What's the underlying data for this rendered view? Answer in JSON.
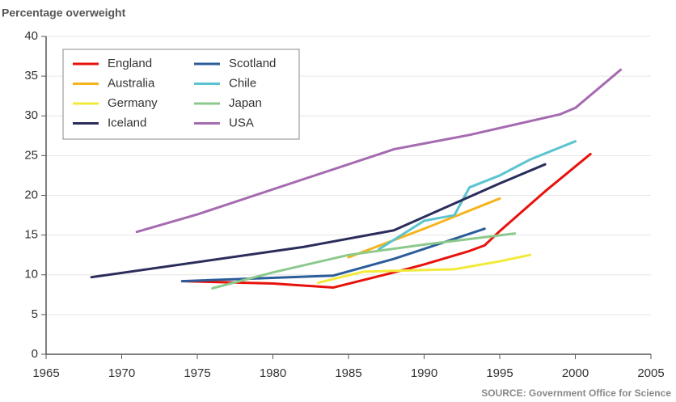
{
  "chart_data": {
    "type": "line",
    "title": "Percentage overweight",
    "annotation": "SOURCE: Government Office for Science",
    "xlim": [
      1965,
      2005
    ],
    "xticks": [
      1965,
      1970,
      1975,
      1980,
      1985,
      1990,
      1995,
      2000,
      2005
    ],
    "ylim": [
      0,
      40
    ],
    "yticks": [
      0,
      5,
      10,
      15,
      20,
      25,
      30,
      35,
      40
    ],
    "grid": true,
    "legend": "upper left",
    "series": [
      {
        "name": "England",
        "color": "#e8120c",
        "x": [
          1974,
          1980,
          1984,
          1988,
          1990,
          1993,
          1994,
          1995,
          1998,
          2001
        ],
        "values": [
          9.2,
          8.9,
          8.4,
          10.3,
          11.3,
          13,
          13.7,
          15.5,
          20.5,
          25.2
        ]
      },
      {
        "name": "Scotland",
        "color": "#2b5d9b",
        "x": [
          1974,
          1984,
          1988,
          1994
        ],
        "values": [
          9.2,
          9.9,
          12,
          15.8
        ]
      },
      {
        "name": "Australia",
        "color": "#f5b41c",
        "x": [
          1985,
          1990,
          1995
        ],
        "values": [
          12.2,
          15.8,
          19.6
        ]
      },
      {
        "name": "Chile",
        "color": "#5bc4d0",
        "x": [
          1987,
          1990,
          1992,
          1993,
          1995,
          1997,
          2000
        ],
        "values": [
          13.2,
          16.8,
          17.5,
          21,
          22.5,
          24.5,
          26.8
        ]
      },
      {
        "name": "Germany",
        "color": "#f2ea38",
        "x": [
          1983,
          1986,
          1992,
          1995,
          1997
        ],
        "values": [
          9,
          10.4,
          10.7,
          11.7,
          12.5
        ]
      },
      {
        "name": "Japan",
        "color": "#8cc98c",
        "x": [
          1976,
          1980,
          1985,
          1990,
          1996
        ],
        "values": [
          8.3,
          10.3,
          12.5,
          13.8,
          15.2
        ]
      },
      {
        "name": "Iceland",
        "color": "#2a2d5c",
        "x": [
          1968,
          1982,
          1988,
          1995,
          1998
        ],
        "values": [
          9.7,
          13.5,
          15.6,
          21.5,
          23.9
        ]
      },
      {
        "name": "USA",
        "color": "#a56bb0",
        "x": [
          1971,
          1975,
          1988,
          1993,
          1999,
          2000,
          2003
        ],
        "values": [
          15.4,
          17.6,
          25.8,
          27.6,
          30.2,
          31,
          35.8
        ]
      }
    ]
  }
}
